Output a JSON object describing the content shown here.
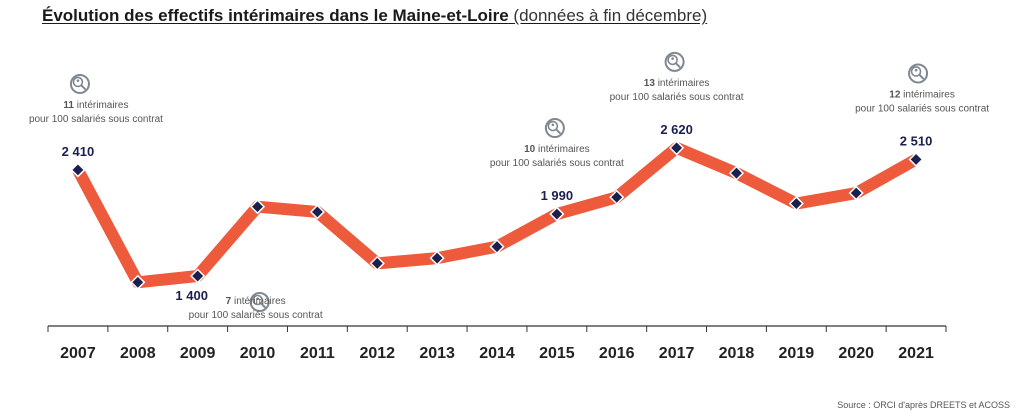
{
  "title": {
    "main": "Évolution des effectifs intérimaires dans le Maine-et-Loire",
    "sub": "(données à fin décembre)"
  },
  "source": "Source : ORCI d'après DREETS et ACOSS",
  "colors": {
    "line": "#ee5a3c",
    "marker": "#1b1f4e",
    "value_label": "#1b1f4e",
    "annotation": "#555555",
    "icon": "#7f8890",
    "axis": "#333333"
  },
  "chart_data": {
    "type": "line",
    "title": "Évolution des effectifs intérimaires dans le Maine-et-Loire (données à fin décembre)",
    "x": [
      "2007",
      "2008",
      "2009",
      "2010",
      "2011",
      "2012",
      "2013",
      "2014",
      "2015",
      "2016",
      "2017",
      "2018",
      "2019",
      "2020",
      "2021"
    ],
    "series": [
      {
        "values": [
          2410,
          1340,
          1400,
          2060,
          2010,
          1520,
          1570,
          1680,
          1990,
          2150,
          2620,
          2380,
          2090,
          2190,
          2510
        ]
      }
    ],
    "ylim": [
      1000,
      3000
    ],
    "grid": false,
    "value_labels": [
      {
        "index": 0,
        "text": "2 410"
      },
      {
        "index": 2,
        "text": "1 400"
      },
      {
        "index": 8,
        "text": "1 990"
      },
      {
        "index": 10,
        "text": "2 620"
      },
      {
        "index": 14,
        "text": "2 510"
      }
    ],
    "annotations": [
      {
        "index": 0,
        "position": "above",
        "count": "11",
        "line1": "intérimaires",
        "line2": "pour 100 salariés sous contrat"
      },
      {
        "index": 2,
        "position": "below",
        "count": "7",
        "line1": "intérimaires",
        "line2": "pour 100 salariés sous contrat"
      },
      {
        "index": 8,
        "position": "above",
        "count": "10",
        "line1": "intérimaires",
        "line2": "pour 100 salariés sous contrat"
      },
      {
        "index": 10,
        "position": "above",
        "count": "13",
        "line1": "intérimaires",
        "line2": "pour 100 salariés sous contrat"
      },
      {
        "index": 14,
        "position": "above",
        "count": "12",
        "line1": "intérimaires",
        "line2": "pour 100 salariés sous contrat"
      }
    ]
  }
}
